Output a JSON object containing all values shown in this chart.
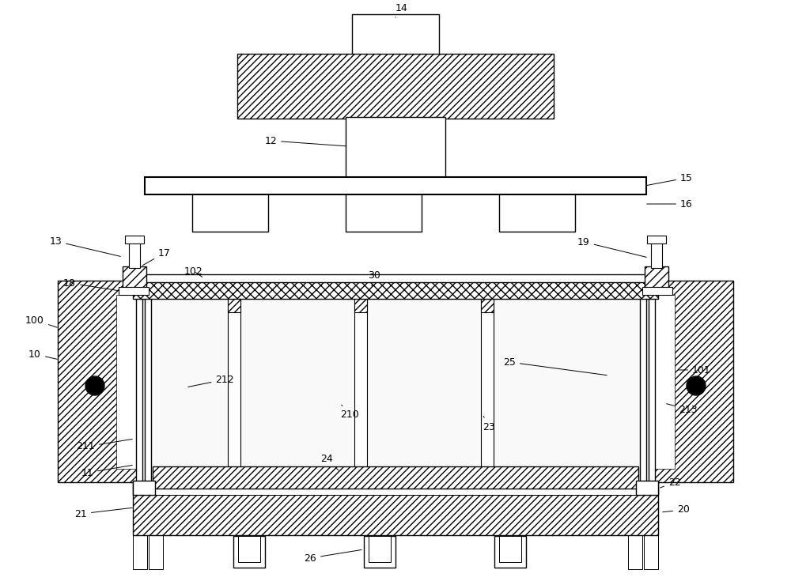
{
  "bg_color": "#ffffff",
  "line_color": "#000000",
  "figsize": [
    10.0,
    7.4
  ],
  "dpi": 100
}
